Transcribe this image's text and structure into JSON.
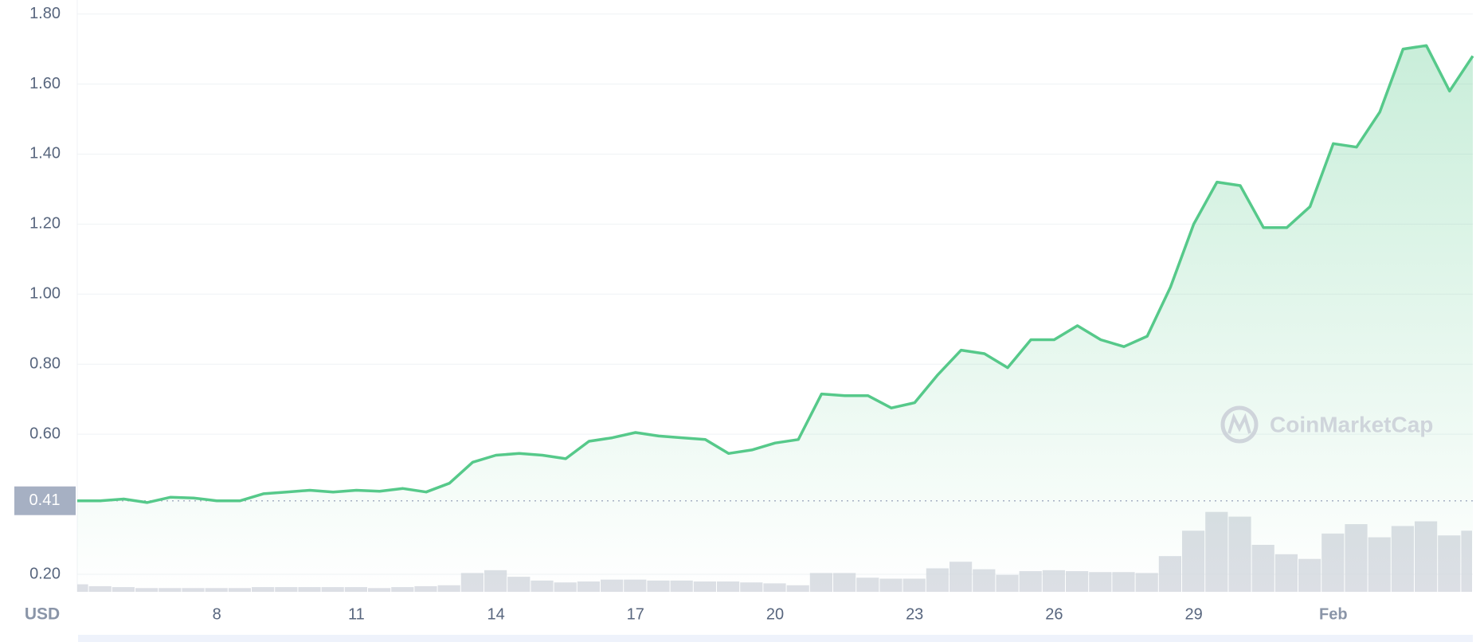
{
  "chart_data": {
    "type": "line",
    "unit": "USD",
    "watermark": "CoinMarketCap",
    "categories": [
      null,
      null,
      null,
      null,
      null,
      null,
      "8",
      null,
      null,
      null,
      null,
      null,
      "11",
      null,
      null,
      null,
      null,
      null,
      "14",
      null,
      null,
      null,
      null,
      null,
      "17",
      null,
      null,
      null,
      null,
      null,
      "20",
      null,
      null,
      null,
      null,
      null,
      "23",
      null,
      null,
      null,
      null,
      null,
      "26",
      null,
      null,
      null,
      null,
      null,
      "29",
      null,
      null,
      null,
      null,
      null,
      "Feb",
      null,
      null,
      null,
      null,
      null,
      null
    ],
    "values": [
      0.41,
      0.41,
      0.415,
      0.405,
      0.42,
      0.418,
      0.41,
      0.41,
      0.43,
      0.435,
      0.44,
      0.435,
      0.44,
      0.437,
      0.445,
      0.435,
      0.46,
      0.52,
      0.54,
      0.545,
      0.54,
      0.53,
      0.58,
      0.59,
      0.605,
      0.595,
      0.59,
      0.585,
      0.545,
      0.555,
      0.575,
      0.585,
      0.715,
      0.71,
      0.71,
      0.675,
      0.69,
      0.77,
      0.84,
      0.83,
      0.79,
      0.87,
      0.87,
      0.91,
      0.87,
      0.85,
      0.88,
      1.02,
      1.2,
      1.32,
      1.31,
      1.19,
      1.19,
      1.25,
      1.43,
      1.42,
      1.52,
      1.7,
      1.71,
      1.58,
      1.68
    ],
    "color": "#56c98a",
    "volume": [
      8,
      6,
      5,
      4,
      4,
      4,
      4,
      4,
      5,
      5,
      5,
      5,
      5,
      4,
      5,
      6,
      7,
      20,
      23,
      16,
      12,
      10,
      11,
      13,
      13,
      12,
      12,
      11,
      11,
      10,
      9,
      7,
      20,
      20,
      15,
      14,
      14,
      25,
      32,
      24,
      18,
      22,
      23,
      22,
      21,
      21,
      20,
      38,
      65,
      85,
      80,
      50,
      40,
      35,
      62,
      72,
      58,
      70,
      75,
      60,
      65
    ],
    "volume_color": "#d3d7de",
    "y2lim": [
      0,
      100
    ],
    "reference": 0.41,
    "ylim": [
      0.15,
      1.84
    ],
    "yticks": [
      {
        "value": 0.2,
        "label": "0.20"
      },
      {
        "value": 0.6,
        "label": "0.60"
      },
      {
        "value": 0.8,
        "label": "0.80"
      },
      {
        "value": 1.0,
        "label": "1.00"
      },
      {
        "value": 1.2,
        "label": "1.20"
      },
      {
        "value": 1.4,
        "label": "1.40"
      },
      {
        "value": 1.6,
        "label": "1.60"
      },
      {
        "value": 1.8,
        "label": "1.80"
      }
    ],
    "grid": true
  }
}
